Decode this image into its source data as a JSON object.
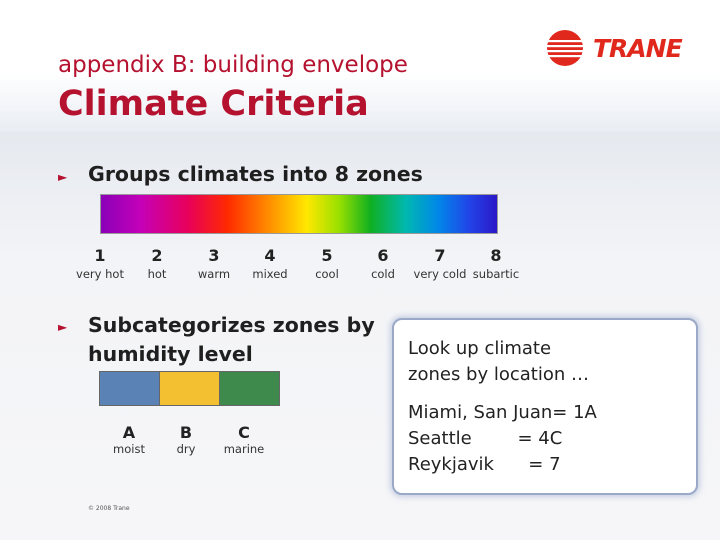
{
  "header": {
    "subtitle": "appendix B: building envelope",
    "title": "Climate Criteria",
    "logo_text": "TRANE"
  },
  "bullets": [
    {
      "text": "Groups climates into 8 zones"
    },
    {
      "text": "Subcategorizes zones by humidity level"
    }
  ],
  "climate_zones": [
    {
      "number": "1",
      "label": "very hot"
    },
    {
      "number": "2",
      "label": "hot"
    },
    {
      "number": "3",
      "label": "warm"
    },
    {
      "number": "4",
      "label": "mixed"
    },
    {
      "number": "5",
      "label": "cool"
    },
    {
      "number": "6",
      "label": "cold"
    },
    {
      "number": "7",
      "label": "very cold"
    },
    {
      "number": "8",
      "label": "subartic"
    }
  ],
  "humidity_levels": [
    {
      "letter": "A",
      "label": "moist",
      "color": "#5b82b4"
    },
    {
      "letter": "B",
      "label": "dry",
      "color": "#f2c030"
    },
    {
      "letter": "C",
      "label": "marine",
      "color": "#3e8a4c"
    }
  ],
  "callout": {
    "intro_line1": "Look up climate",
    "intro_line2": "zones by location …",
    "examples": [
      "Miami, San Juan= 1A",
      "Seattle        = 4C",
      "Reykjavik      = 7"
    ]
  },
  "footer": {
    "copyright": "© 2008 Trane"
  },
  "colors": {
    "accent": "#b5122f",
    "logo_red": "#e0281c"
  }
}
